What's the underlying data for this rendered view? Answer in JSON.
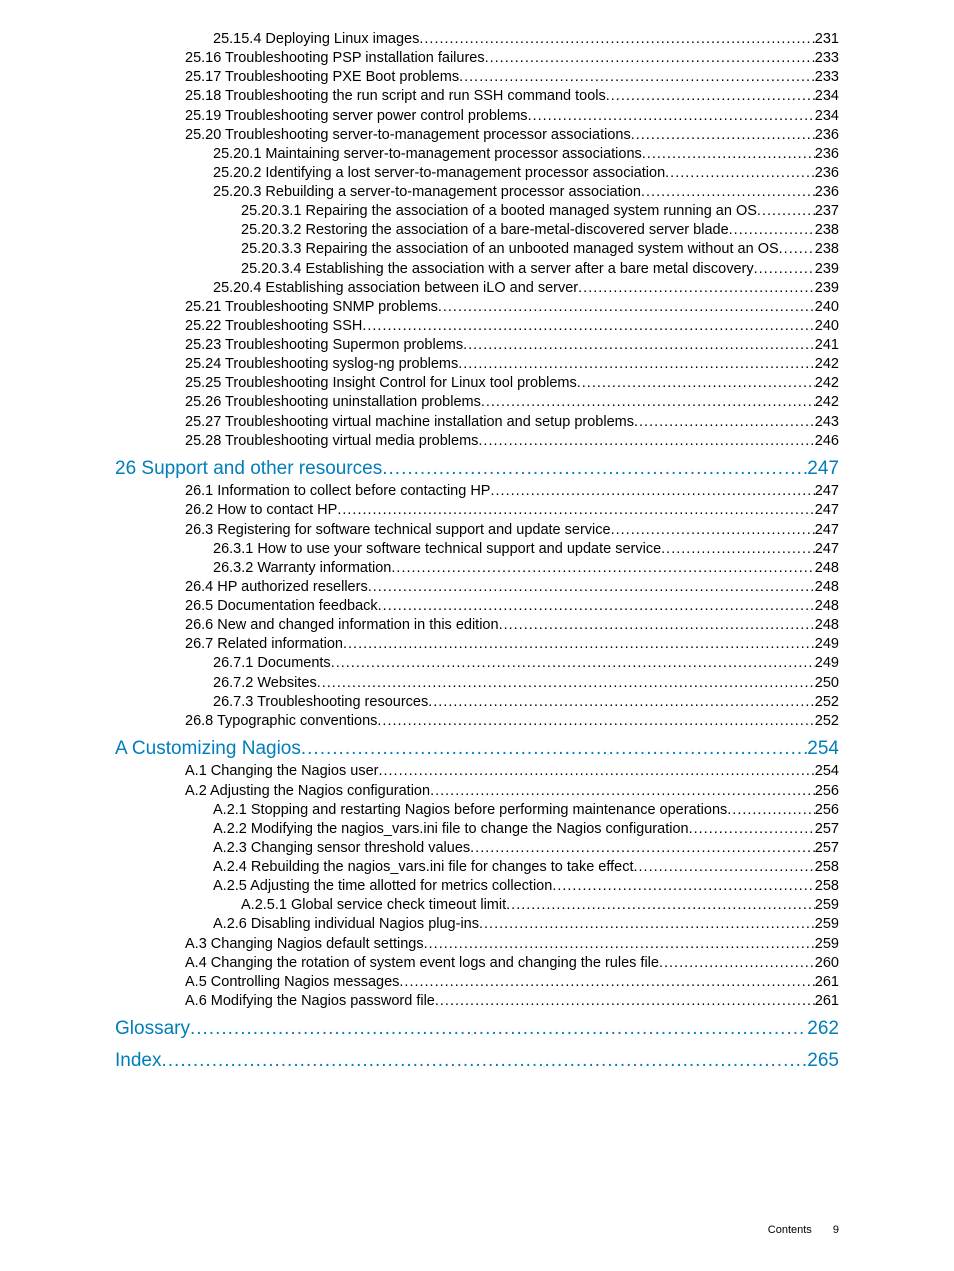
{
  "entries": [
    {
      "level": 3,
      "text": "25.15.4 Deploying Linux images",
      "page": "231"
    },
    {
      "level": 2,
      "text": "25.16 Troubleshooting PSP installation failures",
      "page": "233"
    },
    {
      "level": 2,
      "text": "25.17 Troubleshooting PXE Boot problems",
      "page": "233"
    },
    {
      "level": 2,
      "text": "25.18 Troubleshooting the run script and run SSH command tools",
      "page": "234"
    },
    {
      "level": 2,
      "text": "25.19 Troubleshooting server power control problems",
      "page": "234"
    },
    {
      "level": 2,
      "text": "25.20 Troubleshooting server-to-management processor associations",
      "page": "236"
    },
    {
      "level": 3,
      "text": "25.20.1 Maintaining server-to-management processor associations",
      "page": "236"
    },
    {
      "level": 3,
      "text": "25.20.2 Identifying a lost server-to-management processor association",
      "page": "236"
    },
    {
      "level": 3,
      "text": "25.20.3 Rebuilding a server-to-management processor association",
      "page": "236"
    },
    {
      "level": 4,
      "text": "25.20.3.1 Repairing the association of a booted managed system running an OS",
      "page": "237"
    },
    {
      "level": 4,
      "text": "25.20.3.2 Restoring the association of a bare-metal-discovered server blade",
      "page": "238"
    },
    {
      "level": 4,
      "text": "25.20.3.3 Repairing the association of an unbooted managed system without an OS",
      "page": "238"
    },
    {
      "level": 4,
      "text": "25.20.3.4 Establishing the association with a server after a bare metal discovery",
      "page": "239"
    },
    {
      "level": 3,
      "text": "25.20.4 Establishing association between iLO and server",
      "page": "239"
    },
    {
      "level": 2,
      "text": "25.21 Troubleshooting SNMP problems",
      "page": "240"
    },
    {
      "level": 2,
      "text": "25.22 Troubleshooting SSH",
      "page": "240"
    },
    {
      "level": 2,
      "text": "25.23 Troubleshooting Supermon problems",
      "page": "241"
    },
    {
      "level": 2,
      "text": "25.24 Troubleshooting syslog-ng problems",
      "page": "242"
    },
    {
      "level": 2,
      "text": "25.25 Troubleshooting Insight Control for Linux tool problems",
      "page": "242"
    },
    {
      "level": 2,
      "text": "25.26 Troubleshooting uninstallation problems",
      "page": "242"
    },
    {
      "level": 2,
      "text": "25.27 Troubleshooting virtual machine installation and setup problems",
      "page": "243"
    },
    {
      "level": 2,
      "text": "25.28 Troubleshooting virtual media problems",
      "page": "246"
    },
    {
      "level": 0,
      "text": "26 Support and other resources",
      "page": "247",
      "gap": true
    },
    {
      "level": 2,
      "text": "26.1 Information to collect before contacting HP",
      "page": "247"
    },
    {
      "level": 2,
      "text": "26.2 How to contact HP",
      "page": "247"
    },
    {
      "level": 2,
      "text": "26.3 Registering for software technical support and update service",
      "page": "247"
    },
    {
      "level": 3,
      "text": "26.3.1 How to use your software technical support and update service",
      "page": "247"
    },
    {
      "level": 3,
      "text": "26.3.2 Warranty information",
      "page": "248"
    },
    {
      "level": 2,
      "text": "26.4 HP authorized resellers",
      "page": "248"
    },
    {
      "level": 2,
      "text": "26.5 Documentation feedback",
      "page": "248"
    },
    {
      "level": 2,
      "text": "26.6 New and changed information in this edition",
      "page": "248"
    },
    {
      "level": 2,
      "text": "26.7 Related information",
      "page": "249"
    },
    {
      "level": 3,
      "text": "26.7.1 Documents",
      "page": "249"
    },
    {
      "level": 3,
      "text": "26.7.2 Websites",
      "page": "250"
    },
    {
      "level": 3,
      "text": "26.7.3 Troubleshooting resources",
      "page": "252"
    },
    {
      "level": 2,
      "text": "26.8 Typographic conventions",
      "page": "252"
    },
    {
      "level": 0,
      "text": "A Customizing Nagios",
      "page": "254",
      "gap": true
    },
    {
      "level": 2,
      "text": "A.1 Changing the Nagios user",
      "page": "254"
    },
    {
      "level": 2,
      "text": "A.2 Adjusting the Nagios configuration",
      "page": "256"
    },
    {
      "level": 3,
      "text": "A.2.1 Stopping and restarting Nagios before performing maintenance operations",
      "page": "256"
    },
    {
      "level": 3,
      "text": "A.2.2 Modifying the nagios_vars.ini file to change the Nagios configuration",
      "page": "257"
    },
    {
      "level": 3,
      "text": "A.2.3 Changing sensor threshold values",
      "page": "257"
    },
    {
      "level": 3,
      "text": "A.2.4 Rebuilding the nagios_vars.ini file for changes to take effect",
      "page": "258"
    },
    {
      "level": 3,
      "text": "A.2.5 Adjusting the time allotted for metrics collection",
      "page": "258"
    },
    {
      "level": 4,
      "text": "A.2.5.1 Global service check timeout limit",
      "page": "259"
    },
    {
      "level": 3,
      "text": "A.2.6 Disabling individual Nagios plug-ins",
      "page": "259"
    },
    {
      "level": 2,
      "text": "A.3 Changing Nagios default settings",
      "page": "259"
    },
    {
      "level": 2,
      "text": "A.4 Changing the rotation of system event logs and changing the rules file",
      "page": "260"
    },
    {
      "level": 2,
      "text": "A.5 Controlling Nagios messages",
      "page": "261"
    },
    {
      "level": 2,
      "text": "A.6 Modifying the Nagios password file",
      "page": "261"
    },
    {
      "level": 0,
      "text": "Glossary",
      "page": "262",
      "gap": true
    },
    {
      "level": 0,
      "text": "Index",
      "page": "265",
      "gap": true
    }
  ],
  "footer": {
    "label": "Contents",
    "page": "9"
  },
  "level_classes": {
    "0": "lvl0",
    "1": "lvl1",
    "2": "lvl2",
    "3": "lvl3",
    "4": "lvl4"
  }
}
